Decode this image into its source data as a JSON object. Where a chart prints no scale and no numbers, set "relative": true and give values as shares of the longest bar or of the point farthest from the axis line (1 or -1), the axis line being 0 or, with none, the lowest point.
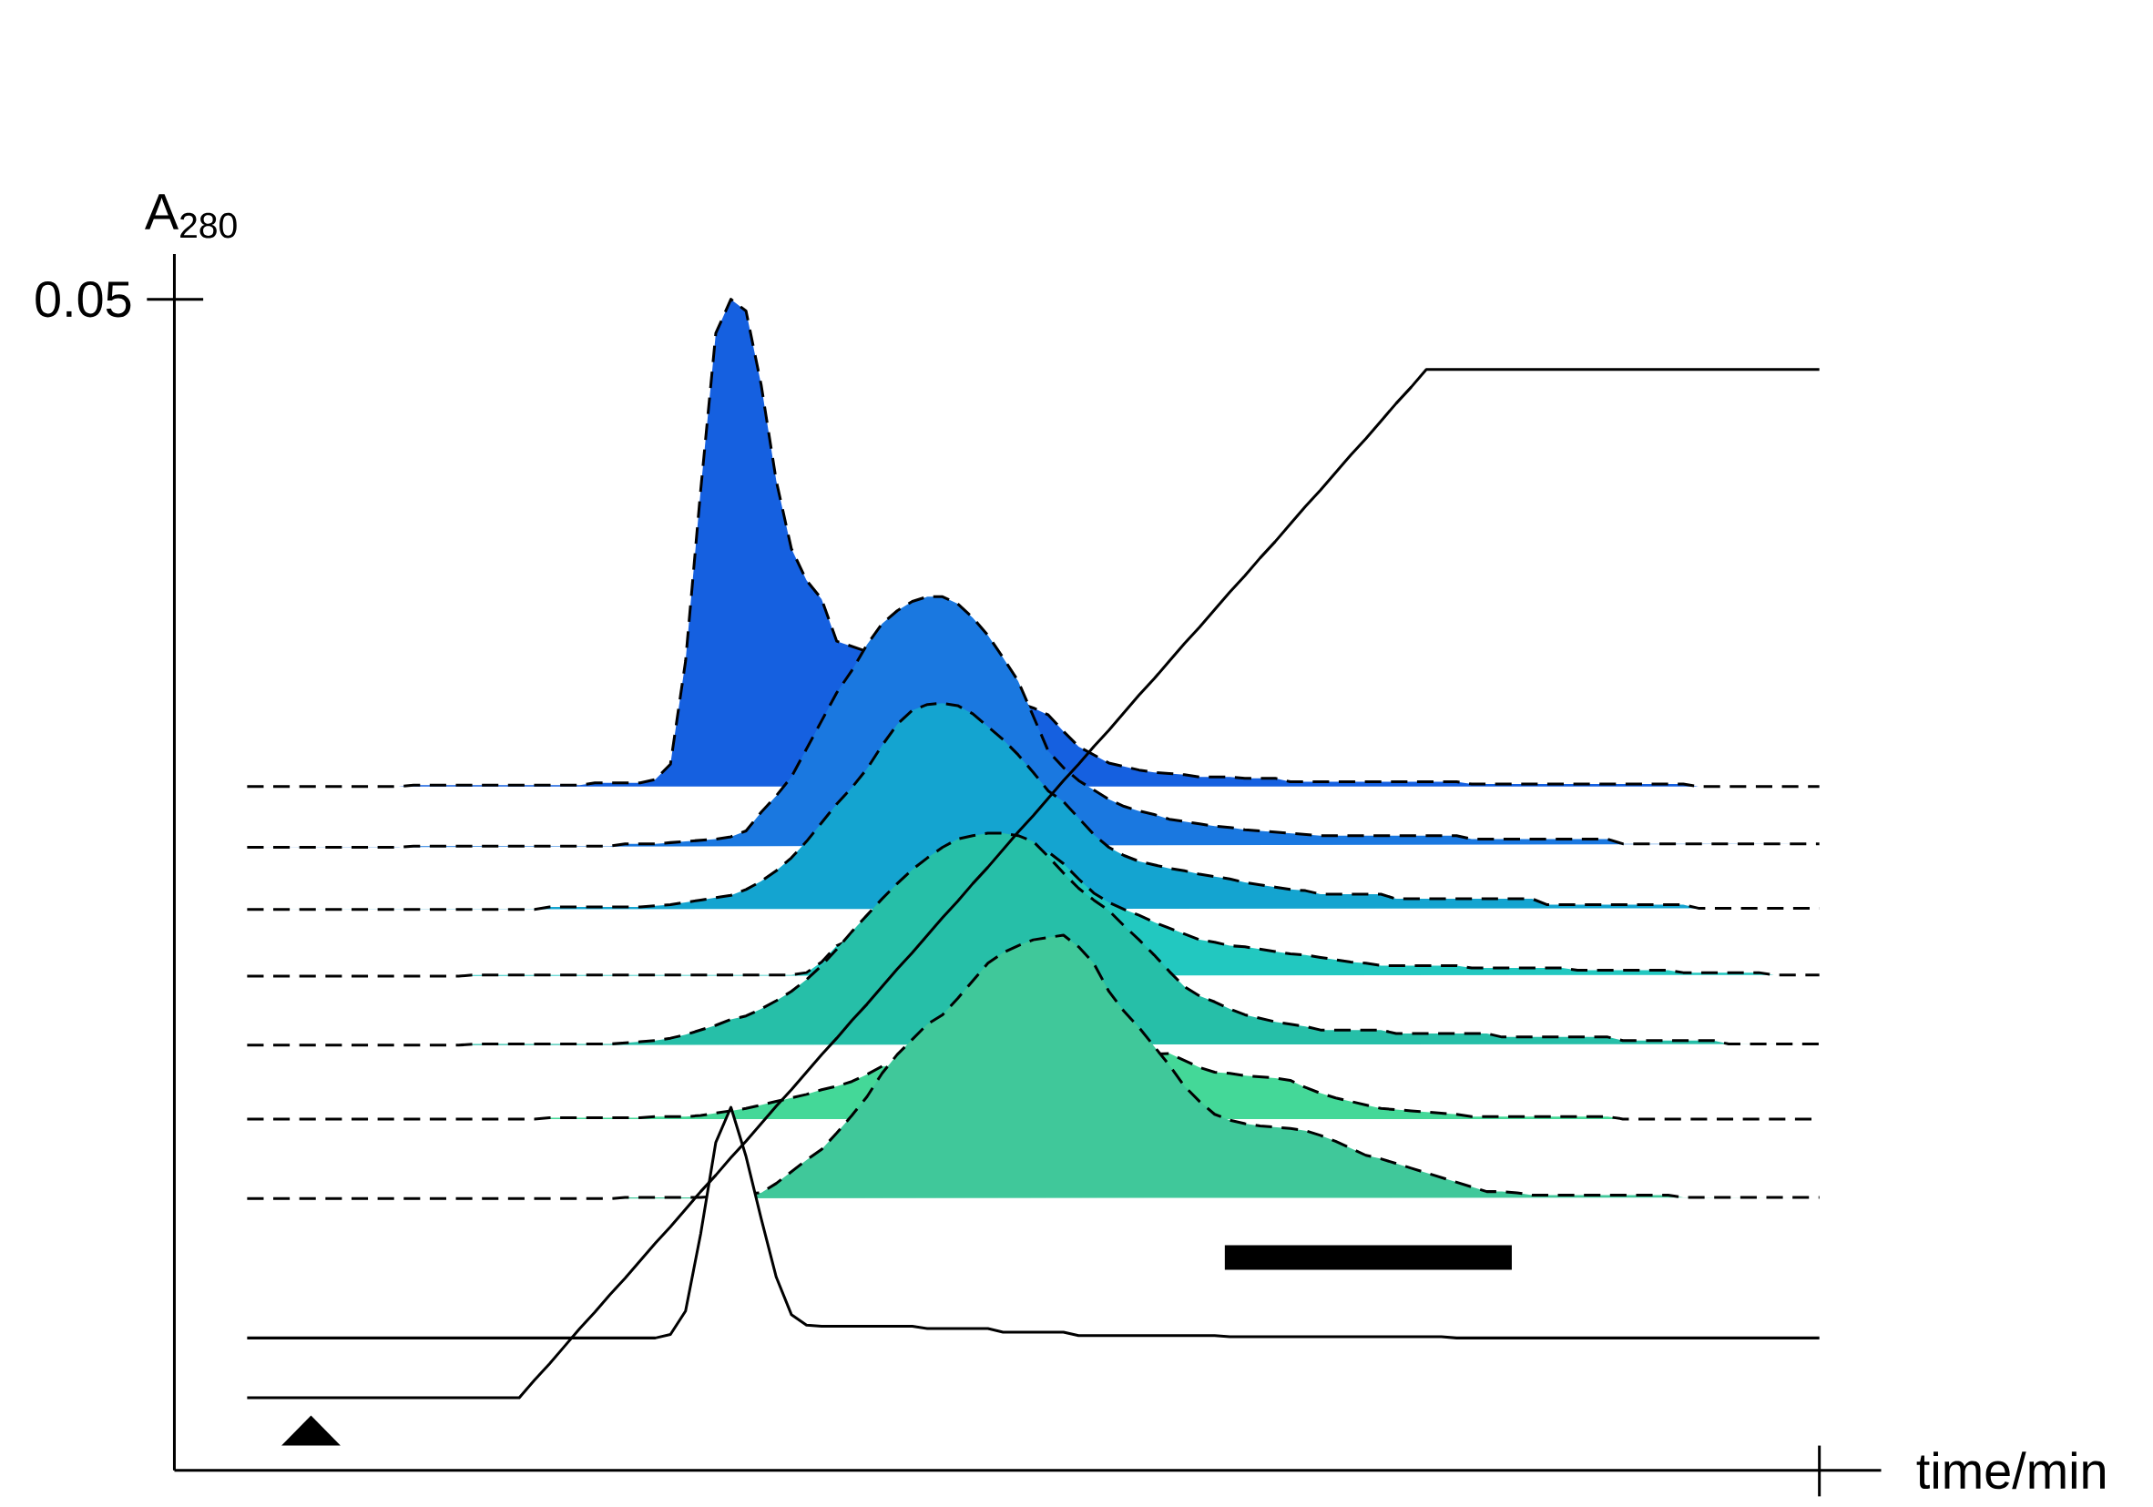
{
  "chart_data": {
    "type": "area",
    "relative": true,
    "xlabel": "time/min",
    "ylabel": "A$_{280}$",
    "annotations": [
      "0.05"
    ],
    "categories": [
      null,
      null,
      null,
      null,
      null,
      null,
      null,
      null,
      null,
      null,
      null,
      null,
      null,
      null,
      null,
      null,
      null,
      null,
      null,
      null,
      null,
      null,
      null,
      null,
      null,
      null,
      null,
      null,
      null,
      null,
      null,
      null,
      null,
      null,
      null,
      null,
      null,
      null,
      null,
      null,
      null,
      null,
      null,
      null,
      null,
      null,
      null,
      null,
      null,
      null,
      null,
      null,
      null,
      null,
      null,
      null,
      null,
      null,
      null,
      null,
      null,
      null,
      null,
      null,
      null,
      null,
      null,
      null,
      null,
      null,
      null,
      null,
      null,
      null,
      null,
      null,
      null,
      null,
      null,
      null,
      null,
      null,
      null,
      null,
      null,
      null,
      null,
      null,
      null,
      null,
      null,
      null,
      null,
      null,
      null,
      null,
      null,
      null,
      null,
      null,
      null,
      null,
      null,
      null,
      null
    ],
    "series": [
      {
        "color": "#1560e0",
        "line_style": "dashed",
        "values": [
          0.584,
          0.584,
          0.584,
          0.584,
          0.584,
          0.584,
          0.584,
          0.584,
          0.584,
          0.584,
          0.584,
          0.585,
          0.585,
          0.585,
          0.585,
          0.585,
          0.585,
          0.585,
          0.585,
          0.585,
          0.585,
          0.585,
          0.585,
          0.587,
          0.587,
          0.587,
          0.587,
          0.59,
          0.603,
          0.691,
          0.837,
          0.971,
          1.0,
          0.99,
          0.927,
          0.845,
          0.787,
          0.76,
          0.744,
          0.708,
          null,
          null,
          null,
          null,
          null,
          null,
          null,
          null,
          null,
          null,
          null,
          null,
          0.651,
          0.645,
          0.631,
          0.618,
          0.611,
          0.604,
          0.601,
          0.598,
          0.596,
          0.595,
          0.594,
          0.592,
          0.592,
          0.592,
          0.591,
          0.591,
          0.591,
          0.588,
          0.588,
          0.588,
          0.588,
          0.588,
          0.588,
          0.588,
          0.588,
          0.588,
          0.588,
          0.588,
          0.588,
          0.586,
          0.586,
          0.586,
          0.586,
          0.586,
          0.586,
          0.586,
          0.586,
          0.586,
          0.586,
          0.586,
          0.586,
          0.586,
          0.586,
          0.586,
          0.584,
          0.584,
          0.584,
          0.584,
          0.584,
          0.584,
          0.584,
          0.584,
          0.584
        ]
      },
      {
        "color": "#1a78e0",
        "line_style": "dashed",
        "values": [
          0.532,
          0.532,
          0.532,
          0.532,
          0.532,
          0.532,
          0.532,
          0.532,
          0.532,
          0.532,
          0.532,
          0.533,
          0.533,
          0.533,
          0.533,
          0.533,
          0.533,
          0.533,
          0.533,
          0.533,
          0.533,
          0.533,
          0.533,
          0.533,
          0.533,
          0.535,
          0.535,
          0.535,
          0.536,
          0.537,
          0.538,
          0.539,
          0.541,
          0.546,
          0.562,
          0.576,
          0.592,
          0.616,
          0.64,
          0.664,
          0.683,
          0.705,
          0.723,
          0.734,
          0.742,
          0.746,
          0.746,
          0.74,
          0.728,
          0.713,
          0.694,
          0.674,
          0.644,
          0.614,
          0.6,
          0.589,
          0.581,
          0.573,
          0.567,
          0.563,
          0.56,
          0.556,
          0.554,
          0.552,
          0.55,
          0.549,
          0.547,
          0.546,
          0.545,
          0.544,
          0.543,
          0.542,
          0.542,
          0.542,
          0.542,
          0.542,
          0.542,
          0.542,
          0.542,
          0.542,
          0.542,
          0.539,
          0.539,
          0.539,
          0.539,
          0.539,
          0.539,
          0.539,
          0.539,
          0.539,
          0.539,
          0.535,
          0.535,
          0.535,
          0.535,
          0.535,
          0.535,
          0.535,
          0.535,
          0.535,
          0.535,
          0.535,
          0.535,
          0.535,
          0.535
        ]
      },
      {
        "color": "#14a4d0",
        "line_style": "dashed",
        "values": [
          0.479,
          0.479,
          0.479,
          0.479,
          0.479,
          0.479,
          0.479,
          0.479,
          0.479,
          0.479,
          0.479,
          0.479,
          0.479,
          0.479,
          0.479,
          0.479,
          0.479,
          0.479,
          0.479,
          0.479,
          0.481,
          0.481,
          0.481,
          0.481,
          0.481,
          0.481,
          0.481,
          0.482,
          0.483,
          0.485,
          0.487,
          0.489,
          0.491,
          0.496,
          0.503,
          0.512,
          0.523,
          0.537,
          0.553,
          0.569,
          0.583,
          0.599,
          0.619,
          0.637,
          0.649,
          0.654,
          0.655,
          0.653,
          0.646,
          0.635,
          0.624,
          0.611,
          0.596,
          0.58,
          0.571,
          0.557,
          0.543,
          0.532,
          0.525,
          0.52,
          0.517,
          0.514,
          0.512,
          0.509,
          0.507,
          0.505,
          0.502,
          0.5,
          0.498,
          0.496,
          0.495,
          0.492,
          0.492,
          0.492,
          0.492,
          0.492,
          0.488,
          0.488,
          0.488,
          0.488,
          0.488,
          0.488,
          0.488,
          0.488,
          0.488,
          0.488,
          0.483,
          0.483,
          0.483,
          0.483,
          0.483,
          0.483,
          0.483,
          0.483,
          0.483,
          0.483,
          0.48,
          0.48,
          0.48,
          0.48,
          0.48,
          0.48,
          0.48,
          0.48,
          0.48
        ]
      },
      {
        "color": "#22c8c0",
        "line_style": "dashed",
        "values": [
          0.422,
          0.422,
          0.422,
          0.422,
          0.422,
          0.422,
          0.422,
          0.422,
          0.422,
          0.422,
          0.422,
          0.422,
          0.422,
          0.422,
          0.422,
          0.423,
          0.423,
          0.423,
          0.423,
          0.423,
          0.423,
          0.423,
          0.423,
          0.423,
          0.423,
          0.423,
          0.423,
          0.423,
          0.423,
          0.423,
          0.423,
          0.423,
          0.423,
          0.423,
          0.423,
          0.423,
          0.423,
          0.425,
          0.434,
          0.448,
          null,
          null,
          null,
          null,
          null,
          null,
          null,
          null,
          null,
          null,
          null,
          null,
          null,
          0.528,
          0.518,
          0.505,
          0.493,
          0.485,
          0.479,
          0.474,
          0.468,
          0.463,
          0.458,
          0.453,
          0.451,
          0.448,
          0.447,
          0.445,
          0.443,
          0.441,
          0.44,
          0.438,
          0.436,
          0.434,
          0.433,
          0.431,
          0.431,
          0.431,
          0.431,
          0.431,
          0.431,
          0.429,
          0.429,
          0.429,
          0.429,
          0.429,
          0.429,
          0.429,
          0.427,
          0.427,
          0.427,
          0.427,
          0.427,
          0.427,
          0.427,
          0.425,
          0.425,
          0.425,
          0.425,
          0.425,
          0.425,
          0.423,
          0.423,
          0.423,
          0.423
        ]
      },
      {
        "color": "#26bfa8",
        "line_style": "dashed",
        "values": [
          0.363,
          0.363,
          0.363,
          0.363,
          0.363,
          0.363,
          0.363,
          0.363,
          0.363,
          0.363,
          0.363,
          0.363,
          0.363,
          0.363,
          0.363,
          0.364,
          0.364,
          0.364,
          0.364,
          0.364,
          0.364,
          0.364,
          0.364,
          0.364,
          0.364,
          0.365,
          0.366,
          0.367,
          0.369,
          0.372,
          0.376,
          0.38,
          0.385,
          0.388,
          0.394,
          0.401,
          0.409,
          0.419,
          0.431,
          0.445,
          0.46,
          0.474,
          0.488,
          0.501,
          0.513,
          0.523,
          0.532,
          0.539,
          0.542,
          0.544,
          0.544,
          0.542,
          0.537,
          0.524,
          0.51,
          0.497,
          0.487,
          0.478,
          0.465,
          0.453,
          0.44,
          0.426,
          0.413,
          0.405,
          0.4,
          0.394,
          0.389,
          0.386,
          0.383,
          0.381,
          0.379,
          0.376,
          0.376,
          0.376,
          0.376,
          0.376,
          0.373,
          0.373,
          0.373,
          0.373,
          0.373,
          0.373,
          0.373,
          0.37,
          0.37,
          0.37,
          0.37,
          0.37,
          0.37,
          0.37,
          0.37,
          0.367,
          0.367,
          0.367,
          0.367,
          0.367,
          0.367,
          0.367,
          0.364,
          0.364,
          0.364,
          0.364,
          0.364,
          0.364,
          0.364
        ]
      },
      {
        "color": "#44d898",
        "line_style": "dashed",
        "values": [
          0.3,
          0.3,
          0.3,
          0.3,
          0.3,
          0.3,
          0.3,
          0.3,
          0.3,
          0.3,
          0.3,
          0.3,
          0.3,
          0.3,
          0.3,
          0.3,
          0.3,
          0.3,
          0.3,
          0.3,
          0.301,
          0.301,
          0.301,
          0.301,
          0.301,
          0.301,
          0.301,
          0.302,
          0.302,
          0.302,
          0.303,
          0.305,
          0.307,
          0.309,
          0.312,
          0.315,
          0.318,
          0.321,
          0.325,
          0.328,
          0.332,
          0.338,
          0.345,
          null,
          null,
          null,
          null,
          null,
          null,
          null,
          null,
          null,
          null,
          null,
          null,
          null,
          null,
          null,
          null,
          null,
          null,
          0.356,
          0.35,
          0.344,
          0.34,
          0.339,
          0.337,
          0.336,
          0.335,
          0.333,
          0.327,
          0.322,
          0.318,
          0.315,
          0.312,
          0.309,
          0.308,
          0.307,
          0.306,
          0.305,
          0.304,
          0.302,
          0.302,
          0.302,
          0.302,
          0.302,
          0.302,
          0.302,
          0.302,
          0.302,
          0.302,
          0.3,
          0.3,
          0.3,
          0.3,
          0.3,
          0.3,
          0.3,
          0.3,
          0.3,
          0.3,
          0.3,
          0.3,
          0.3,
          0.3
        ]
      },
      {
        "color": "#40c89a",
        "line_style": "dashed",
        "values": [
          0.232,
          0.232,
          0.232,
          0.232,
          0.232,
          0.232,
          0.232,
          0.232,
          0.232,
          0.232,
          0.232,
          0.232,
          0.232,
          0.232,
          0.232,
          0.232,
          0.232,
          0.232,
          0.232,
          0.232,
          0.232,
          0.232,
          0.232,
          0.232,
          0.232,
          0.233,
          0.233,
          0.233,
          0.233,
          0.233,
          0.233,
          null,
          null,
          null,
          0.237,
          0.245,
          0.255,
          0.265,
          0.274,
          0.288,
          0.303,
          0.319,
          0.339,
          0.355,
          0.368,
          0.381,
          0.389,
          0.403,
          0.418,
          0.433,
          0.442,
          0.448,
          0.453,
          0.455,
          0.457,
          0.447,
          0.433,
          0.409,
          0.392,
          0.378,
          0.362,
          0.346,
          0.328,
          0.315,
          0.304,
          0.299,
          0.296,
          0.294,
          0.293,
          0.292,
          0.29,
          0.286,
          0.281,
          0.275,
          0.269,
          0.266,
          0.262,
          0.258,
          0.254,
          0.25,
          0.246,
          0.242,
          0.238,
          0.238,
          0.237,
          0.235,
          0.235,
          0.235,
          0.235,
          0.235,
          0.235,
          0.235,
          0.235,
          0.235,
          0.235,
          0.233,
          0.233,
          0.233,
          0.233,
          0.233,
          0.233,
          0.233,
          0.233,
          0.233,
          0.233
        ]
      },
      {
        "color": "#ffffff",
        "line_style": "solid",
        "values": [
          0.113,
          0.113,
          0.113,
          0.113,
          0.113,
          0.113,
          0.113,
          0.113,
          0.113,
          0.113,
          0.113,
          0.113,
          0.113,
          0.113,
          0.113,
          0.113,
          0.113,
          0.113,
          0.113,
          0.113,
          0.113,
          0.113,
          0.113,
          0.113,
          0.113,
          0.113,
          0.113,
          0.113,
          0.116,
          0.136,
          0.202,
          0.28,
          0.31,
          0.268,
          0.215,
          0.165,
          0.133,
          0.124,
          0.123,
          0.123,
          0.123,
          0.123,
          0.123,
          0.123,
          0.123,
          0.121,
          0.121,
          0.121,
          0.121,
          0.121,
          0.118,
          0.118,
          0.118,
          0.118,
          0.118,
          0.115,
          0.115,
          0.115,
          0.115,
          0.115,
          0.115,
          0.115,
          0.115,
          0.115,
          0.115,
          0.114,
          0.114,
          0.114,
          0.114,
          0.114,
          0.114,
          0.114,
          0.114,
          0.114,
          0.114,
          0.114,
          0.114,
          0.114,
          0.114,
          0.114,
          0.113,
          0.113,
          0.113,
          0.113,
          0.113,
          0.113,
          0.113,
          0.113,
          0.113,
          0.113,
          0.113,
          0.113,
          0.113,
          0.113,
          0.113,
          0.113,
          0.113,
          0.113,
          0.113,
          0.113,
          0.113,
          0.113,
          0.113,
          0.113,
          0.113
        ]
      },
      {
        "type": "line",
        "color": "#000000",
        "line_style": "solid",
        "values": [
          0.062,
          0.062,
          0.062,
          0.062,
          0.062,
          0.062,
          0.062,
          0.062,
          0.062,
          0.062,
          0.062,
          0.062,
          0.062,
          0.062,
          0.062,
          0.062,
          0.062,
          0.062,
          0.062,
          0.077,
          0.091,
          0.106,
          0.121,
          0.135,
          0.15,
          0.164,
          0.179,
          0.194,
          0.208,
          0.223,
          0.238,
          0.252,
          0.267,
          0.281,
          0.296,
          0.311,
          0.325,
          0.34,
          0.355,
          0.369,
          0.384,
          0.398,
          0.413,
          0.428,
          0.442,
          0.457,
          0.472,
          0.486,
          0.501,
          0.515,
          0.53,
          0.545,
          0.559,
          0.574,
          0.589,
          0.603,
          0.618,
          0.632,
          0.647,
          0.662,
          0.676,
          0.691,
          0.706,
          0.72,
          0.735,
          0.75,
          0.764,
          0.779,
          0.793,
          0.808,
          0.823,
          0.837,
          0.852,
          0.867,
          0.881,
          0.896,
          0.911,
          0.925,
          0.94,
          0.94,
          0.94,
          0.94,
          0.94,
          0.94,
          0.94,
          0.94,
          0.94,
          0.94,
          0.94,
          0.94,
          0.94,
          0.94,
          0.94,
          0.94,
          0.94,
          0.94,
          0.94,
          0.94,
          0.94,
          0.94,
          0.94,
          0.94,
          0.94,
          0.94,
          0.94
        ]
      }
    ]
  }
}
